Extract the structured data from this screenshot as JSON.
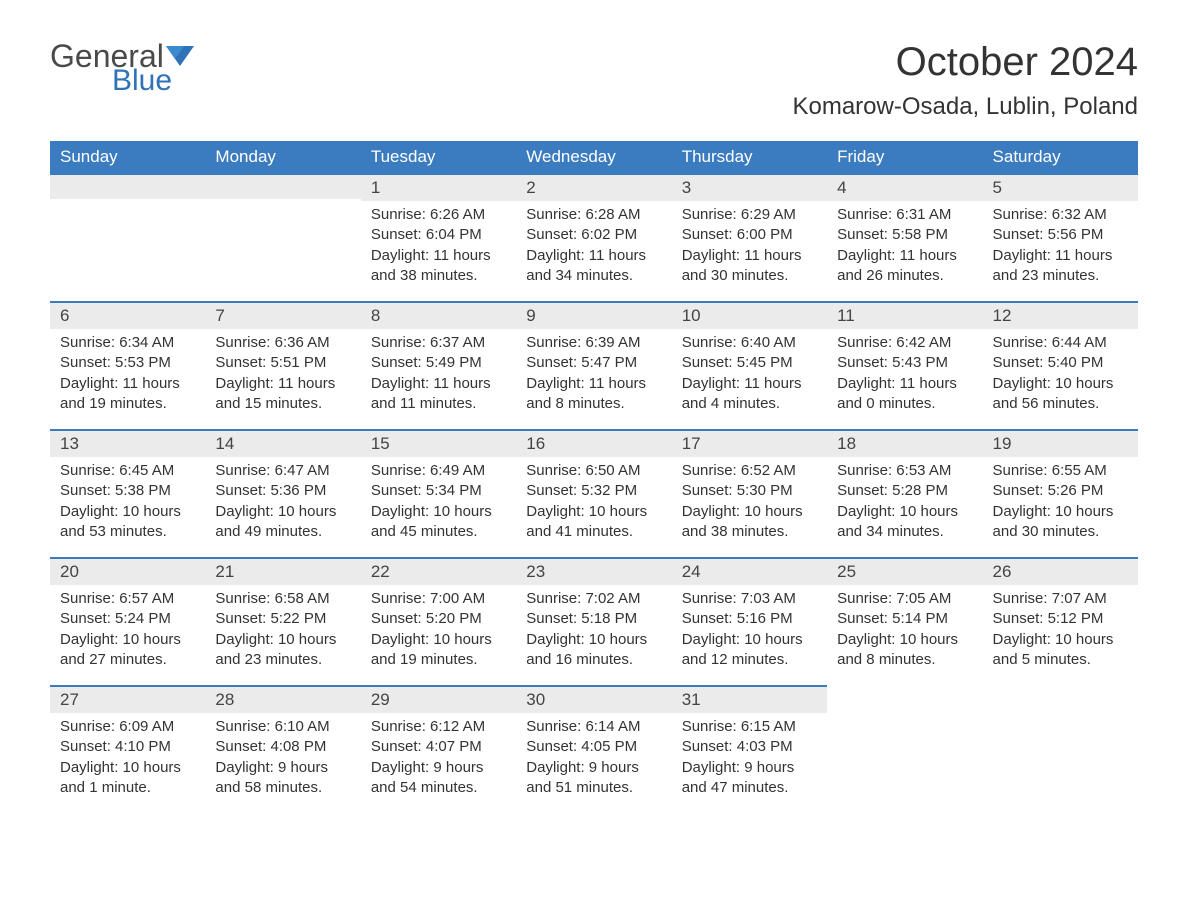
{
  "logo": {
    "text_general": "General",
    "text_blue": "Blue",
    "flag_color": "#2f72b8"
  },
  "title": "October 2024",
  "location": "Komarow-Osada, Lublin, Poland",
  "header_bg": "#3b7bbf",
  "header_fg": "#ffffff",
  "daynum_bg": "#ebebeb",
  "border_color": "#3b7bbf",
  "text_color": "#333333",
  "weekdays": [
    "Sunday",
    "Monday",
    "Tuesday",
    "Wednesday",
    "Thursday",
    "Friday",
    "Saturday"
  ],
  "weeks": [
    [
      null,
      null,
      {
        "n": "1",
        "sunrise": "Sunrise: 6:26 AM",
        "sunset": "Sunset: 6:04 PM",
        "day1": "Daylight: 11 hours",
        "day2": "and 38 minutes."
      },
      {
        "n": "2",
        "sunrise": "Sunrise: 6:28 AM",
        "sunset": "Sunset: 6:02 PM",
        "day1": "Daylight: 11 hours",
        "day2": "and 34 minutes."
      },
      {
        "n": "3",
        "sunrise": "Sunrise: 6:29 AM",
        "sunset": "Sunset: 6:00 PM",
        "day1": "Daylight: 11 hours",
        "day2": "and 30 minutes."
      },
      {
        "n": "4",
        "sunrise": "Sunrise: 6:31 AM",
        "sunset": "Sunset: 5:58 PM",
        "day1": "Daylight: 11 hours",
        "day2": "and 26 minutes."
      },
      {
        "n": "5",
        "sunrise": "Sunrise: 6:32 AM",
        "sunset": "Sunset: 5:56 PM",
        "day1": "Daylight: 11 hours",
        "day2": "and 23 minutes."
      }
    ],
    [
      {
        "n": "6",
        "sunrise": "Sunrise: 6:34 AM",
        "sunset": "Sunset: 5:53 PM",
        "day1": "Daylight: 11 hours",
        "day2": "and 19 minutes."
      },
      {
        "n": "7",
        "sunrise": "Sunrise: 6:36 AM",
        "sunset": "Sunset: 5:51 PM",
        "day1": "Daylight: 11 hours",
        "day2": "and 15 minutes."
      },
      {
        "n": "8",
        "sunrise": "Sunrise: 6:37 AM",
        "sunset": "Sunset: 5:49 PM",
        "day1": "Daylight: 11 hours",
        "day2": "and 11 minutes."
      },
      {
        "n": "9",
        "sunrise": "Sunrise: 6:39 AM",
        "sunset": "Sunset: 5:47 PM",
        "day1": "Daylight: 11 hours",
        "day2": "and 8 minutes."
      },
      {
        "n": "10",
        "sunrise": "Sunrise: 6:40 AM",
        "sunset": "Sunset: 5:45 PM",
        "day1": "Daylight: 11 hours",
        "day2": "and 4 minutes."
      },
      {
        "n": "11",
        "sunrise": "Sunrise: 6:42 AM",
        "sunset": "Sunset: 5:43 PM",
        "day1": "Daylight: 11 hours",
        "day2": "and 0 minutes."
      },
      {
        "n": "12",
        "sunrise": "Sunrise: 6:44 AM",
        "sunset": "Sunset: 5:40 PM",
        "day1": "Daylight: 10 hours",
        "day2": "and 56 minutes."
      }
    ],
    [
      {
        "n": "13",
        "sunrise": "Sunrise: 6:45 AM",
        "sunset": "Sunset: 5:38 PM",
        "day1": "Daylight: 10 hours",
        "day2": "and 53 minutes."
      },
      {
        "n": "14",
        "sunrise": "Sunrise: 6:47 AM",
        "sunset": "Sunset: 5:36 PM",
        "day1": "Daylight: 10 hours",
        "day2": "and 49 minutes."
      },
      {
        "n": "15",
        "sunrise": "Sunrise: 6:49 AM",
        "sunset": "Sunset: 5:34 PM",
        "day1": "Daylight: 10 hours",
        "day2": "and 45 minutes."
      },
      {
        "n": "16",
        "sunrise": "Sunrise: 6:50 AM",
        "sunset": "Sunset: 5:32 PM",
        "day1": "Daylight: 10 hours",
        "day2": "and 41 minutes."
      },
      {
        "n": "17",
        "sunrise": "Sunrise: 6:52 AM",
        "sunset": "Sunset: 5:30 PM",
        "day1": "Daylight: 10 hours",
        "day2": "and 38 minutes."
      },
      {
        "n": "18",
        "sunrise": "Sunrise: 6:53 AM",
        "sunset": "Sunset: 5:28 PM",
        "day1": "Daylight: 10 hours",
        "day2": "and 34 minutes."
      },
      {
        "n": "19",
        "sunrise": "Sunrise: 6:55 AM",
        "sunset": "Sunset: 5:26 PM",
        "day1": "Daylight: 10 hours",
        "day2": "and 30 minutes."
      }
    ],
    [
      {
        "n": "20",
        "sunrise": "Sunrise: 6:57 AM",
        "sunset": "Sunset: 5:24 PM",
        "day1": "Daylight: 10 hours",
        "day2": "and 27 minutes."
      },
      {
        "n": "21",
        "sunrise": "Sunrise: 6:58 AM",
        "sunset": "Sunset: 5:22 PM",
        "day1": "Daylight: 10 hours",
        "day2": "and 23 minutes."
      },
      {
        "n": "22",
        "sunrise": "Sunrise: 7:00 AM",
        "sunset": "Sunset: 5:20 PM",
        "day1": "Daylight: 10 hours",
        "day2": "and 19 minutes."
      },
      {
        "n": "23",
        "sunrise": "Sunrise: 7:02 AM",
        "sunset": "Sunset: 5:18 PM",
        "day1": "Daylight: 10 hours",
        "day2": "and 16 minutes."
      },
      {
        "n": "24",
        "sunrise": "Sunrise: 7:03 AM",
        "sunset": "Sunset: 5:16 PM",
        "day1": "Daylight: 10 hours",
        "day2": "and 12 minutes."
      },
      {
        "n": "25",
        "sunrise": "Sunrise: 7:05 AM",
        "sunset": "Sunset: 5:14 PM",
        "day1": "Daylight: 10 hours",
        "day2": "and 8 minutes."
      },
      {
        "n": "26",
        "sunrise": "Sunrise: 7:07 AM",
        "sunset": "Sunset: 5:12 PM",
        "day1": "Daylight: 10 hours",
        "day2": "and 5 minutes."
      }
    ],
    [
      {
        "n": "27",
        "sunrise": "Sunrise: 6:09 AM",
        "sunset": "Sunset: 4:10 PM",
        "day1": "Daylight: 10 hours",
        "day2": "and 1 minute."
      },
      {
        "n": "28",
        "sunrise": "Sunrise: 6:10 AM",
        "sunset": "Sunset: 4:08 PM",
        "day1": "Daylight: 9 hours",
        "day2": "and 58 minutes."
      },
      {
        "n": "29",
        "sunrise": "Sunrise: 6:12 AM",
        "sunset": "Sunset: 4:07 PM",
        "day1": "Daylight: 9 hours",
        "day2": "and 54 minutes."
      },
      {
        "n": "30",
        "sunrise": "Sunrise: 6:14 AM",
        "sunset": "Sunset: 4:05 PM",
        "day1": "Daylight: 9 hours",
        "day2": "and 51 minutes."
      },
      {
        "n": "31",
        "sunrise": "Sunrise: 6:15 AM",
        "sunset": "Sunset: 4:03 PM",
        "day1": "Daylight: 9 hours",
        "day2": "and 47 minutes."
      },
      null,
      null
    ]
  ]
}
